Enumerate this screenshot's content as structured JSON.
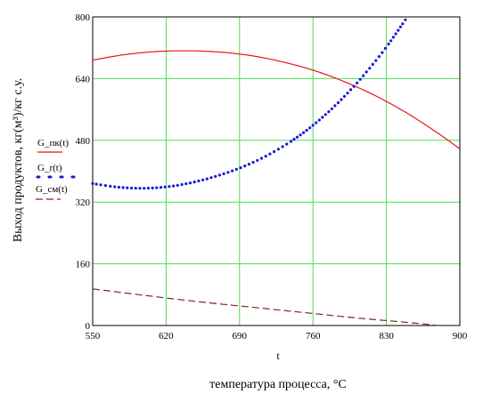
{
  "chart_data": {
    "type": "line",
    "title": "",
    "xlabel": "температура процесса,  °C",
    "xvar": "t",
    "ylabel": "Выход продуктов, кг(м³)/кг с.у.",
    "xlim": [
      550,
      900
    ],
    "ylim": [
      0,
      800
    ],
    "xticks": [
      550,
      620,
      690,
      760,
      830,
      900
    ],
    "yticks": [
      0,
      160,
      320,
      480,
      640,
      800
    ],
    "grid": true,
    "legend_position": "left-middle",
    "series": [
      {
        "name": "G_пк(t)",
        "style": "solid",
        "color": "#e8141b",
        "x": [
          550,
          580,
          610,
          640,
          670,
          700,
          730,
          760,
          790,
          820,
          850,
          880,
          900
        ],
        "y": [
          688,
          702,
          710,
          712,
          709,
          700,
          684,
          662,
          632,
          595,
          550,
          497,
          458
        ]
      },
      {
        "name": "G_r(t)",
        "style": "dotted",
        "color": "#1a1ad6",
        "x": [
          550,
          570,
          590,
          610,
          630,
          650,
          670,
          690,
          710,
          730,
          750,
          770,
          790,
          810,
          830,
          850
        ],
        "y": [
          368,
          360,
          356,
          357,
          363,
          374,
          389,
          408,
          432,
          462,
          498,
          542,
          594,
          654,
          722,
          800
        ]
      },
      {
        "name": "G_см(t)",
        "style": "dashed",
        "color": "#7a2a22",
        "x": [
          550,
          600,
          650,
          700,
          750,
          800,
          850,
          880
        ],
        "y": [
          95,
          78,
          62,
          48,
          34,
          20,
          8,
          0
        ]
      }
    ]
  }
}
